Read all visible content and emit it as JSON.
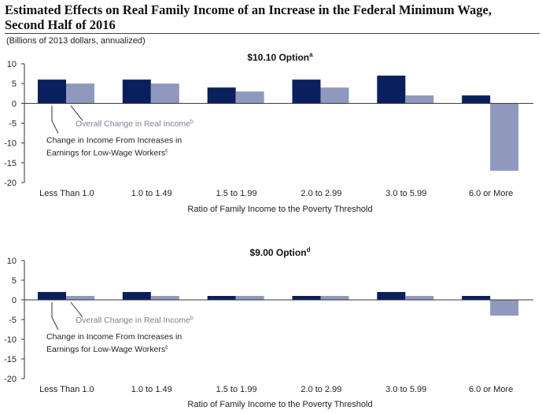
{
  "figure": {
    "title_line1": "Estimated Effects on Real Family Income of an Increase in the Federal Minimum Wage,",
    "title_line2": "Second Half of 2016",
    "units": "(Billions of 2013 dollars, annualized)"
  },
  "colors": {
    "earnings": "#0b1f5e",
    "overall": "#8f98bd",
    "axis": "#333333",
    "text": "#222222",
    "label_gray": "#7a7f96"
  },
  "chart_data": [
    {
      "type": "bar",
      "title": "$10.10 Option",
      "title_sup": "a",
      "xlabel": "Ratio of Family Income to the Poverty Threshold",
      "ylabel": "",
      "ylim": [
        -20,
        10
      ],
      "yticks": [
        10,
        5,
        0,
        -5,
        -10,
        -15,
        -20
      ],
      "categories": [
        "Less Than 1.0",
        "1.0 to 1.49",
        "1.5 to 1.99",
        "2.0 to 2.99",
        "3.0 to 5.99",
        "6.0 or More"
      ],
      "series": [
        {
          "name": "Change in Income From Increases in Earnings for Low-Wage Workers",
          "sup": "c",
          "values": [
            6,
            6,
            4,
            6,
            7,
            2
          ]
        },
        {
          "name": "Overall Change in Real Income",
          "sup": "b",
          "values": [
            5,
            5,
            3,
            4,
            2,
            -17
          ]
        }
      ],
      "annotations": {
        "overall_label": "Overall Change in Real Income",
        "overall_sup": "b",
        "earnings_label_line1": "Change in Income From Increases in",
        "earnings_label_line2": "Earnings for Low-Wage Workers",
        "earnings_sup": "c"
      },
      "grid": false
    },
    {
      "type": "bar",
      "title": "$9.00 Option",
      "title_sup": "d",
      "xlabel": "Ratio of Family Income to the Poverty Threshold",
      "ylabel": "",
      "ylim": [
        -20,
        10
      ],
      "yticks": [
        10,
        5,
        0,
        -5,
        -10,
        -15,
        -20
      ],
      "categories": [
        "Less Than 1.0",
        "1.0 to 1.49",
        "1.5 to 1.99",
        "2.0 to 2.99",
        "3.0 to 5.99",
        "6.0 or More"
      ],
      "series": [
        {
          "name": "Change in Income From Increases in Earnings for Low-Wage Workers",
          "sup": "c",
          "values": [
            2,
            2,
            1,
            1,
            2,
            1
          ]
        },
        {
          "name": "Overall Change in Real Income",
          "sup": "b",
          "values": [
            1,
            1,
            1,
            1,
            1,
            -4
          ]
        }
      ],
      "annotations": {
        "overall_label": "Overall Change in Real Income",
        "overall_sup": "b",
        "earnings_label_line1": "Change in Income From Increases in",
        "earnings_label_line2": "Earnings for Low-Wage Workers",
        "earnings_sup": "c"
      },
      "grid": false
    }
  ]
}
